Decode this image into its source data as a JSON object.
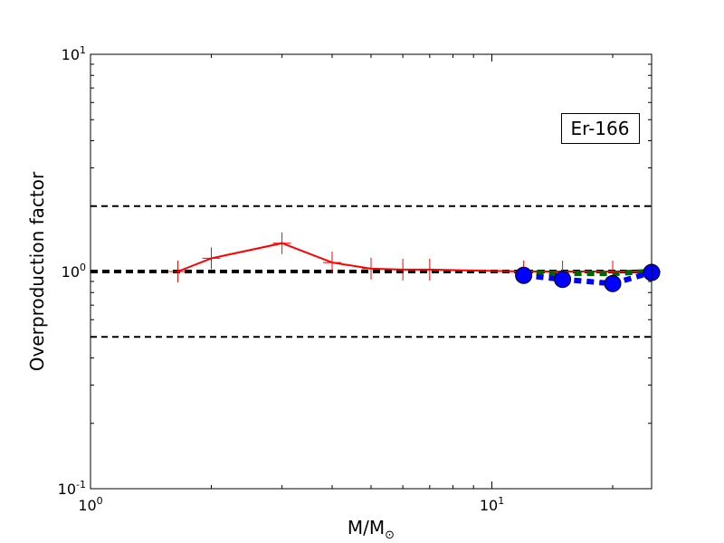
{
  "chart_data": {
    "type": "line",
    "xlabel": "M/M",
    "xlabel_subscript": "⊙",
    "ylabel": "Overproduction factor",
    "annotation": "Er-166",
    "xscale": "log",
    "yscale": "log",
    "xlim": [
      1,
      25
    ],
    "ylim": [
      0.1,
      10
    ],
    "xticks": [
      {
        "base": "10",
        "exp": "0",
        "value": 1
      },
      {
        "base": "10",
        "exp": "1",
        "value": 10
      }
    ],
    "yticks": [
      {
        "base": "10",
        "exp": "-1",
        "value": 0.1
      },
      {
        "base": "10",
        "exp": "0",
        "value": 1
      },
      {
        "base": "10",
        "exp": "1",
        "value": 10
      }
    ],
    "reference_lines": [
      {
        "y": 2.0,
        "style": "dashed",
        "color": "#000000",
        "width": "thin"
      },
      {
        "y": 1.0,
        "style": "dashed",
        "color": "#000000",
        "width": "thick"
      },
      {
        "y": 0.5,
        "style": "dashed",
        "color": "#000000",
        "width": "thin"
      }
    ],
    "series": [
      {
        "style": "solid",
        "color": "#ff0000",
        "marker": "plus",
        "x": [
          1.65,
          2.0,
          3.0,
          4.0,
          5.0,
          6.0,
          7.0,
          12.0,
          15.0,
          20.0,
          25.0
        ],
        "y": [
          1.0,
          1.15,
          1.35,
          1.1,
          1.03,
          1.02,
          1.02,
          1.0,
          1.0,
          1.0,
          1.0
        ]
      },
      {
        "style": "dashed",
        "color": "#006400",
        "marker": "none",
        "x": [
          12.0,
          15.0,
          20.0,
          25.0
        ],
        "y": [
          0.99,
          0.98,
          0.98,
          1.0
        ]
      },
      {
        "style": "dashed",
        "color": "#0000ff",
        "marker": "circle",
        "x": [
          12.0,
          15.0,
          20.0,
          25.0
        ],
        "y": [
          0.96,
          0.92,
          0.88,
          0.99
        ]
      }
    ]
  }
}
